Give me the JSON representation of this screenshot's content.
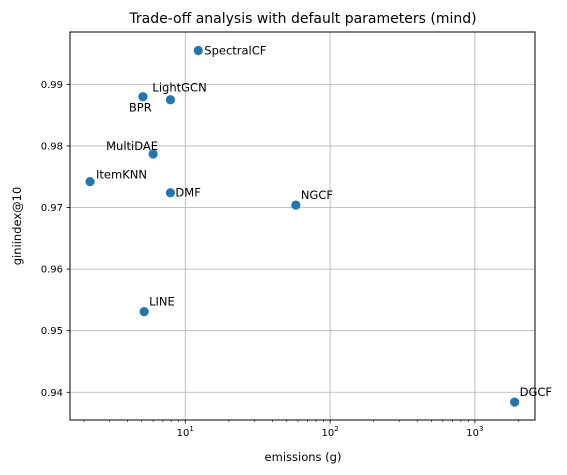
{
  "chart_data": {
    "type": "scatter",
    "title": "Trade-off analysis with default parameters (mind)",
    "xlabel": "emissions (g)",
    "ylabel": "giniindex@10",
    "x_scale": "log",
    "xlim": [
      1.6,
      2600
    ],
    "ylim": [
      0.9355,
      0.9985
    ],
    "grid": true,
    "x_ticks": [
      {
        "value": 10,
        "base": "10",
        "exp": "1"
      },
      {
        "value": 100,
        "base": "10",
        "exp": "2"
      },
      {
        "value": 1000,
        "base": "10",
        "exp": "3"
      }
    ],
    "y_ticks": [
      {
        "value": 0.94,
        "label": "0.94"
      },
      {
        "value": 0.95,
        "label": "0.95"
      },
      {
        "value": 0.96,
        "label": "0.96"
      },
      {
        "value": 0.97,
        "label": "0.97"
      },
      {
        "value": 0.98,
        "label": "0.98"
      },
      {
        "value": 0.99,
        "label": "0.99"
      }
    ],
    "marker_color": "#1f77b4",
    "points": [
      {
        "label": "SpectralCF",
        "x": 12.3,
        "y": 0.9955
      },
      {
        "label": "BPR",
        "x": 5.1,
        "y": 0.988
      },
      {
        "label": "LightGCN",
        "x": 7.9,
        "y": 0.9875
      },
      {
        "label": "MultiDAE",
        "x": 6.0,
        "y": 0.9787
      },
      {
        "label": "ItemKNN",
        "x": 2.2,
        "y": 0.9742
      },
      {
        "label": "DMF",
        "x": 7.9,
        "y": 0.9724
      },
      {
        "label": "NGCF",
        "x": 58,
        "y": 0.9704
      },
      {
        "label": "LINE",
        "x": 5.2,
        "y": 0.9531
      },
      {
        "label": "DGCF",
        "x": 1880,
        "y": 0.9384
      }
    ]
  }
}
